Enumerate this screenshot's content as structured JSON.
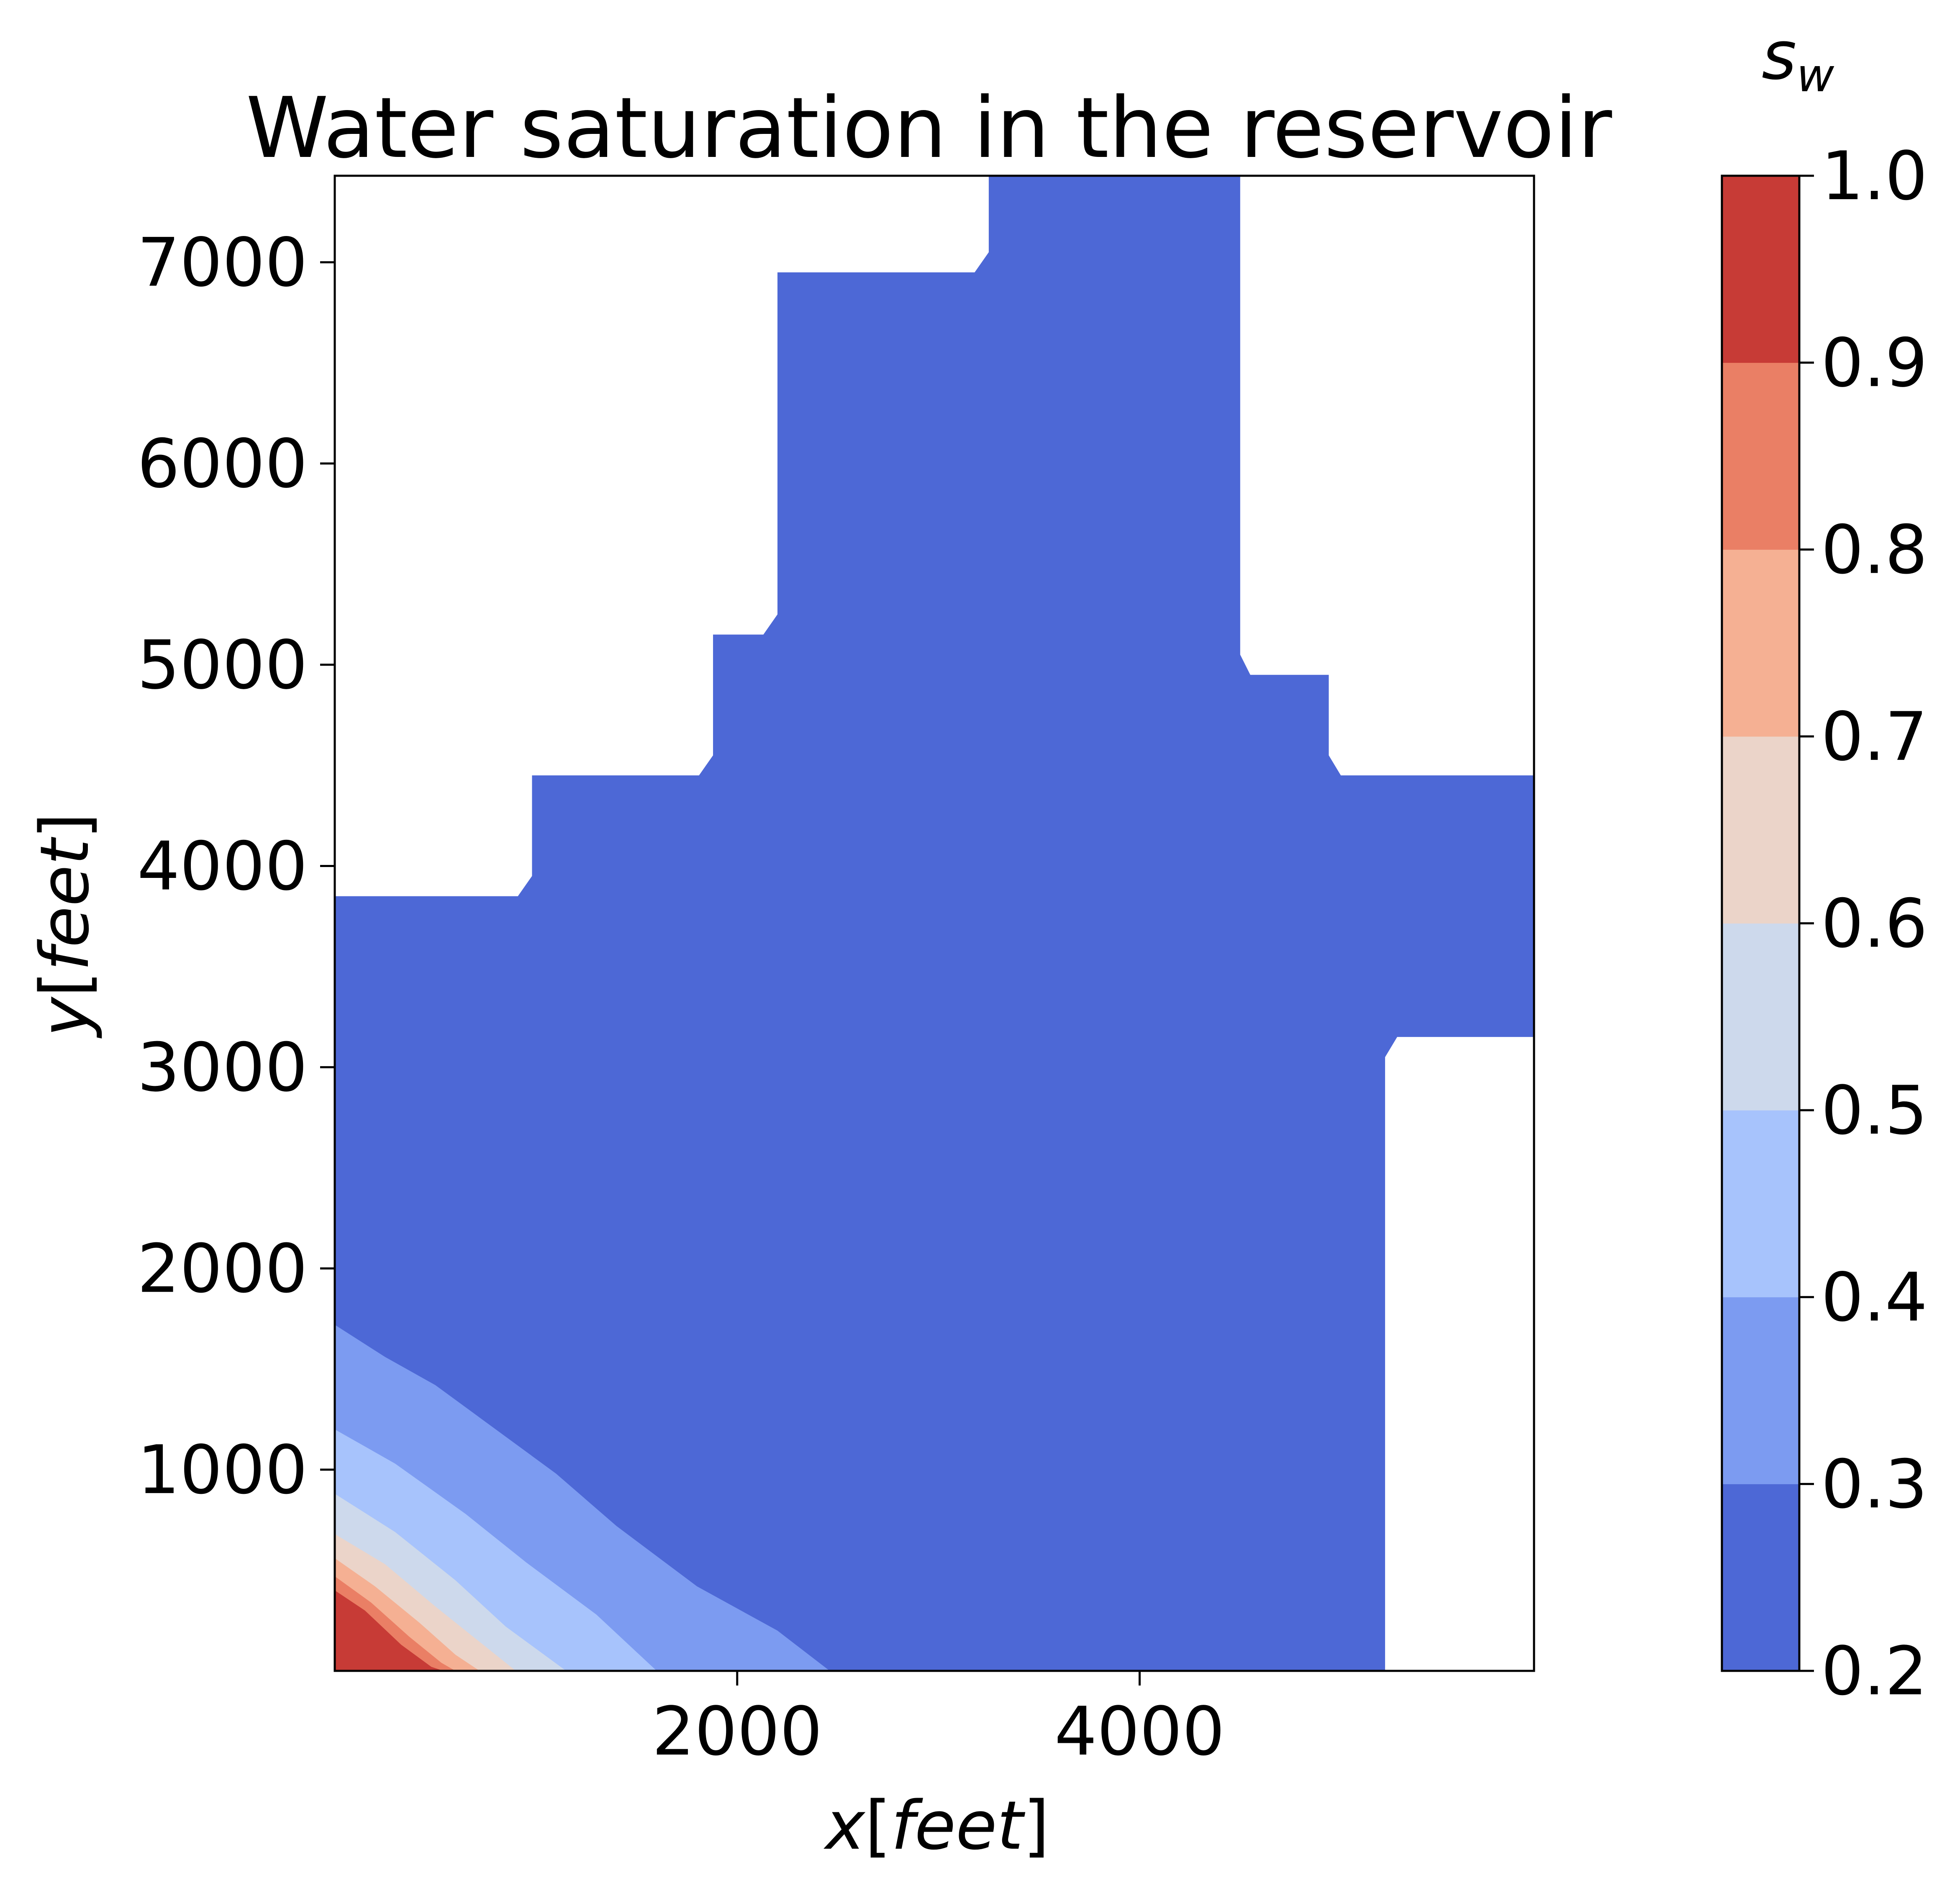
{
  "chart_data": {
    "type": "contour",
    "title": "Water saturation in the reservoir",
    "xlabel": {
      "variable": "x",
      "unit": "feet"
    },
    "ylabel": {
      "variable": "y",
      "unit": "feet"
    },
    "xlim": [
      0,
      5960
    ],
    "ylim": [
      0,
      7430
    ],
    "xticks": [
      2000,
      4000
    ],
    "xtick_labels": [
      "2000",
      "4000"
    ],
    "yticks": [
      1000,
      2000,
      3000,
      4000,
      5000,
      6000,
      7000
    ],
    "ytick_labels": [
      "1000",
      "2000",
      "3000",
      "4000",
      "5000",
      "6000",
      "7000"
    ],
    "grid": false,
    "colormap": "coolwarm",
    "colorbar": {
      "label": {
        "variable": "s",
        "subscript": "w"
      },
      "ticks": [
        0.2,
        0.3,
        0.4,
        0.5,
        0.6,
        0.7,
        0.8,
        0.9,
        1.0
      ],
      "tick_labels": [
        "0.2",
        "0.3",
        "0.4",
        "0.5",
        "0.6",
        "0.7",
        "0.8",
        "0.9",
        "1.0"
      ],
      "levels": [
        0.2,
        0.3,
        0.4,
        0.5,
        0.6,
        0.7,
        0.8,
        0.9,
        1.0
      ],
      "colors": [
        "#4d68d6",
        "#7c9bf1",
        "#a7c3fc",
        "#cdd9ec",
        "#ebd4c9",
        "#f5b093",
        "#ea7f65",
        "#c73b36"
      ]
    },
    "domain_outline": [
      [
        0,
        0
      ],
      [
        5220,
        0
      ],
      [
        5220,
        3050
      ],
      [
        5280,
        3150
      ],
      [
        5960,
        3150
      ],
      [
        5960,
        4450
      ],
      [
        5000,
        4450
      ],
      [
        4940,
        4550
      ],
      [
        4940,
        4950
      ],
      [
        4550,
        4950
      ],
      [
        4500,
        5050
      ],
      [
        4500,
        7430
      ],
      [
        3250,
        7430
      ],
      [
        3250,
        7050
      ],
      [
        3180,
        6950
      ],
      [
        2200,
        6950
      ],
      [
        2200,
        5250
      ],
      [
        2130,
        5150
      ],
      [
        1880,
        5150
      ],
      [
        1880,
        4550
      ],
      [
        1810,
        4450
      ],
      [
        980,
        4450
      ],
      [
        980,
        3950
      ],
      [
        910,
        3850
      ],
      [
        0,
        3850
      ]
    ],
    "contour_fronts": [
      {
        "level": 0.3,
        "points": [
          [
            0,
            1720
          ],
          [
            250,
            1560
          ],
          [
            500,
            1420
          ],
          [
            800,
            1200
          ],
          [
            1100,
            980
          ],
          [
            1400,
            720
          ],
          [
            1800,
            420
          ],
          [
            2200,
            200
          ],
          [
            2460,
            0
          ]
        ]
      },
      {
        "level": 0.4,
        "points": [
          [
            0,
            1200
          ],
          [
            300,
            1030
          ],
          [
            650,
            780
          ],
          [
            950,
            540
          ],
          [
            1300,
            280
          ],
          [
            1600,
            0
          ]
        ]
      },
      {
        "level": 0.5,
        "points": [
          [
            0,
            880
          ],
          [
            300,
            690
          ],
          [
            600,
            450
          ],
          [
            850,
            220
          ],
          [
            1150,
            0
          ]
        ]
      },
      {
        "level": 0.6,
        "points": [
          [
            0,
            680
          ],
          [
            250,
            530
          ],
          [
            500,
            320
          ],
          [
            750,
            120
          ],
          [
            900,
            0
          ]
        ]
      },
      {
        "level": 0.7,
        "points": [
          [
            0,
            560
          ],
          [
            200,
            420
          ],
          [
            420,
            240
          ],
          [
            600,
            80
          ],
          [
            720,
            0
          ]
        ]
      },
      {
        "level": 0.8,
        "points": [
          [
            0,
            470
          ],
          [
            180,
            340
          ],
          [
            370,
            170
          ],
          [
            530,
            40
          ],
          [
            600,
            0
          ]
        ]
      },
      {
        "level": 0.9,
        "points": [
          [
            0,
            400
          ],
          [
            150,
            300
          ],
          [
            330,
            130
          ],
          [
            480,
            20
          ],
          [
            540,
            0
          ]
        ]
      }
    ]
  }
}
